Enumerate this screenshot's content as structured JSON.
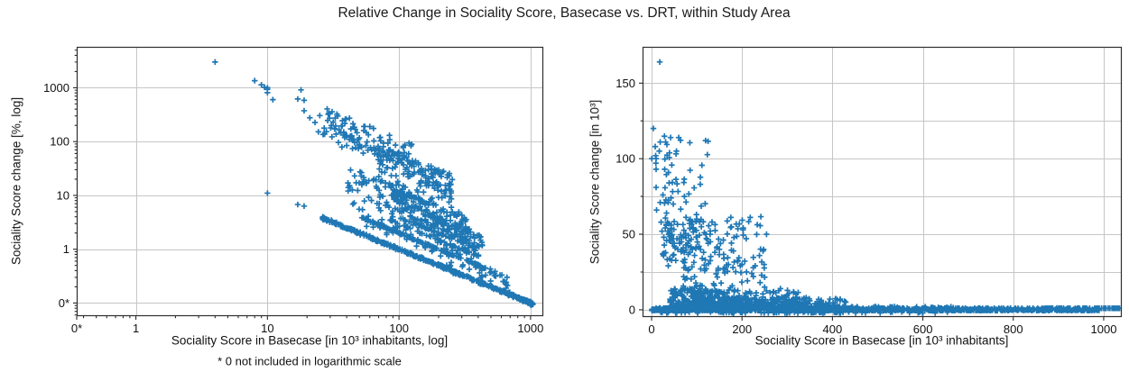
{
  "figure": {
    "title": "Relative Change in Sociality Score, Basecase vs. DRT, within Study Area",
    "background": "#ffffff",
    "marker_color": "#1f77b4",
    "grid_color": "#c6c6c6",
    "spine_color": "#2e2e2e",
    "text_color": "#111111"
  },
  "chart_data": [
    {
      "type": "scatter",
      "name": "log-log-percent-change",
      "marker": "+",
      "marker_color": "#1f77b4",
      "xscale": "log",
      "yscale": "log",
      "xlabel": "Sociality Score in Basecase [in 10³ inhabitants, log]",
      "ylabel": "Sociality Score change [%, log]",
      "footnote": "* 0 not included in logarithmic scale",
      "xlim": [
        0.355,
        1250
      ],
      "ylim": [
        0.057,
        5750
      ],
      "x_ticks": [
        {
          "v": 0.355,
          "label": "0*",
          "grid": false
        },
        {
          "v": 1,
          "label": "1",
          "grid": true
        },
        {
          "v": 10,
          "label": "10",
          "grid": true
        },
        {
          "v": 100,
          "label": "100",
          "grid": true
        },
        {
          "v": 1000,
          "label": "1000",
          "grid": true
        }
      ],
      "y_ticks": [
        {
          "v": 0.1,
          "label": "0*",
          "grid": true
        },
        {
          "v": 1,
          "label": "1",
          "grid": true
        },
        {
          "v": 10,
          "label": "10",
          "grid": true
        },
        {
          "v": 100,
          "label": "100",
          "grid": true
        },
        {
          "v": 1000,
          "label": "1000",
          "grid": true
        }
      ],
      "minor_ticks": true,
      "grid": true,
      "points_from": "shared_dataset",
      "y_transform": "percent_change = 100 * delta / basecase",
      "excludes": "pairs with delta <= 0 (zeros/negatives not shown on log scale)"
    },
    {
      "type": "scatter",
      "name": "linear-absolute-change",
      "marker": "+",
      "marker_color": "#1f77b4",
      "xscale": "linear",
      "yscale": "linear",
      "xlabel": "Sociality Score in Basecase [in 10³ inhabitants]",
      "ylabel": "Sociality Score change [in 10³]",
      "xlim": [
        -20,
        1040
      ],
      "ylim": [
        -4.8,
        174
      ],
      "x_ticks": [
        {
          "v": 0,
          "label": "0",
          "grid": true
        },
        {
          "v": 200,
          "label": "200",
          "grid": true
        },
        {
          "v": 400,
          "label": "400",
          "grid": true
        },
        {
          "v": 600,
          "label": "600",
          "grid": true
        },
        {
          "v": 800,
          "label": "800",
          "grid": true
        },
        {
          "v": 1000,
          "label": "1000",
          "grid": true
        }
      ],
      "y_grid": [
        0,
        25,
        50,
        75,
        100,
        125,
        150
      ],
      "y_ticks": [
        {
          "v": 0,
          "label": "0",
          "grid": true
        },
        {
          "v": 50,
          "label": "50",
          "grid": true
        },
        {
          "v": 100,
          "label": "100",
          "grid": true
        },
        {
          "v": 150,
          "label": "150",
          "grid": true
        }
      ],
      "minor_ticks": false,
      "grid": true,
      "points_from": "shared_dataset",
      "y_transform": "delta"
    }
  ],
  "shared_dataset": {
    "units": "10^3 inhabitants",
    "pairs_basecase_delta": [
      [
        4,
        120
      ],
      [
        0.5,
        100
      ],
      [
        8,
        108
      ],
      [
        9,
        102
      ],
      [
        9.5,
        97
      ],
      [
        10,
        100
      ],
      [
        10,
        93
      ],
      [
        10,
        81
      ],
      [
        11,
        66
      ],
      [
        17,
        105
      ],
      [
        18,
        164
      ],
      [
        19,
        111
      ],
      [
        19,
        71
      ],
      [
        21,
        58
      ],
      [
        23,
        52
      ],
      [
        25,
        76
      ],
      [
        27,
        48
      ],
      [
        29,
        93
      ],
      [
        31,
        111
      ],
      [
        33,
        64
      ],
      [
        35,
        58
      ],
      [
        36,
        52
      ],
      [
        38,
        57
      ],
      [
        40,
        52
      ],
      [
        42,
        46
      ],
      [
        44,
        49
      ],
      [
        46,
        44
      ],
      [
        48,
        47
      ],
      [
        50,
        44
      ],
      [
        52,
        41
      ],
      [
        55,
        105
      ],
      [
        56,
        47
      ],
      [
        58,
        40
      ],
      [
        60,
        114
      ],
      [
        62,
        44
      ],
      [
        66,
        45
      ],
      [
        70,
        41
      ],
      [
        72,
        38
      ],
      [
        76,
        43
      ],
      [
        80,
        44
      ],
      [
        85,
        38
      ],
      [
        90,
        40
      ],
      [
        95,
        36
      ],
      [
        100,
        60
      ],
      [
        105,
        42
      ],
      [
        110,
        55
      ],
      [
        115,
        38
      ],
      [
        120,
        50
      ],
      [
        125,
        44
      ],
      [
        130,
        45
      ],
      [
        140,
        38
      ],
      [
        150,
        40
      ],
      [
        160,
        34
      ],
      [
        170,
        30
      ],
      [
        180,
        28
      ],
      [
        190,
        32
      ],
      [
        200,
        30
      ],
      [
        210,
        25
      ],
      [
        225,
        22
      ],
      [
        240,
        18
      ],
      [
        250,
        15
      ],
      [
        270,
        12
      ],
      [
        285,
        14
      ],
      [
        300,
        10
      ],
      [
        320,
        8
      ],
      [
        350,
        6
      ],
      [
        10,
        1.1
      ],
      [
        17,
        1.15
      ],
      [
        19,
        1.2
      ],
      [
        980,
        1
      ],
      [
        990,
        1.05
      ],
      [
        1000,
        1
      ],
      [
        1005,
        0.92
      ],
      [
        1010,
        1.05
      ],
      [
        1025,
        0.95
      ],
      [
        1040,
        1
      ]
    ],
    "dense_groups": [
      {
        "name": "delta-1-line",
        "count": 420,
        "x": {
          "dist": "log",
          "min": 26,
          "max": 1045
        },
        "delta": {
          "base": 1,
          "jitter": 0.07
        }
      },
      {
        "name": "delta-1-endblob",
        "count": 40,
        "x": {
          "dist": "log",
          "min": 880,
          "max": 1040
        },
        "delta": {
          "base": 1,
          "jitter": 0.06
        }
      },
      {
        "name": "delta-2-line",
        "count": 120,
        "x": {
          "dist": "log",
          "min": 50,
          "max": 450
        },
        "delta": {
          "base": 2,
          "jitter": 0.1
        }
      },
      {
        "name": "delta-3-line",
        "count": 45,
        "x": {
          "dist": "log",
          "min": 80,
          "max": 420
        },
        "delta": {
          "base": 3,
          "jitter": 0.12
        }
      },
      {
        "name": "delta-4-line",
        "count": 28,
        "x": {
          "dist": "log",
          "min": 110,
          "max": 400
        },
        "delta": {
          "base": 4,
          "jitter": 0.15
        }
      },
      {
        "name": "delta-5-line",
        "count": 20,
        "x": {
          "dist": "log",
          "min": 130,
          "max": 390
        },
        "delta": {
          "base": 5,
          "jitter": 0.2
        }
      },
      {
        "name": "delta-6-8",
        "count": 26,
        "x": {
          "dist": "log",
          "min": 140,
          "max": 380
        },
        "delta": {
          "range": [
            6,
            8.5
          ]
        }
      },
      {
        "name": "cloud-high",
        "count": 85,
        "x": {
          "dist": "log",
          "min": 24,
          "max": 130
        },
        "delta": {
          "range": [
            28,
            115
          ],
          "pow": 1.2
        }
      },
      {
        "name": "cloud-mid",
        "count": 150,
        "x": {
          "dist": "log",
          "min": 65,
          "max": 260
        },
        "delta": {
          "range": [
            8,
            62
          ]
        }
      },
      {
        "name": "cloud-low",
        "count": 130,
        "x": {
          "dist": "log",
          "min": 90,
          "max": 330
        },
        "delta": {
          "range": [
            2.5,
            13
          ]
        }
      },
      {
        "name": "wedge",
        "count": 120,
        "x": {
          "dist": "log",
          "min": 40,
          "max": 200
        },
        "delta": {
          "range": [
            1.5,
            14
          ],
          "pow": 1.3
        }
      },
      {
        "name": "tail-bumps",
        "count": 90,
        "x": {
          "dist": "pow",
          "min": 200,
          "max": 430,
          "pow": 1
        },
        "delta": {
          "range": [
            0.8,
            8
          ],
          "pow": 1.4
        }
      },
      {
        "name": "far-tail",
        "count": 25,
        "x": {
          "dist": "pow",
          "min": 430,
          "max": 700,
          "pow": 1
        },
        "delta": {
          "range": [
            1,
            2.2
          ]
        }
      },
      {
        "name": "zero-band",
        "count": 950,
        "x": {
          "dist": "pow",
          "min": 0.5,
          "max": 990,
          "pow": 1.3
        },
        "delta": {
          "range": [
            -0.55,
            0.45
          ]
        }
      },
      {
        "name": "neg-streak",
        "count": 80,
        "x": {
          "dist": "pow",
          "min": 20,
          "max": 660,
          "pow": 1.2
        },
        "delta": {
          "range": [
            -2.2,
            -1.3
          ]
        }
      }
    ]
  }
}
